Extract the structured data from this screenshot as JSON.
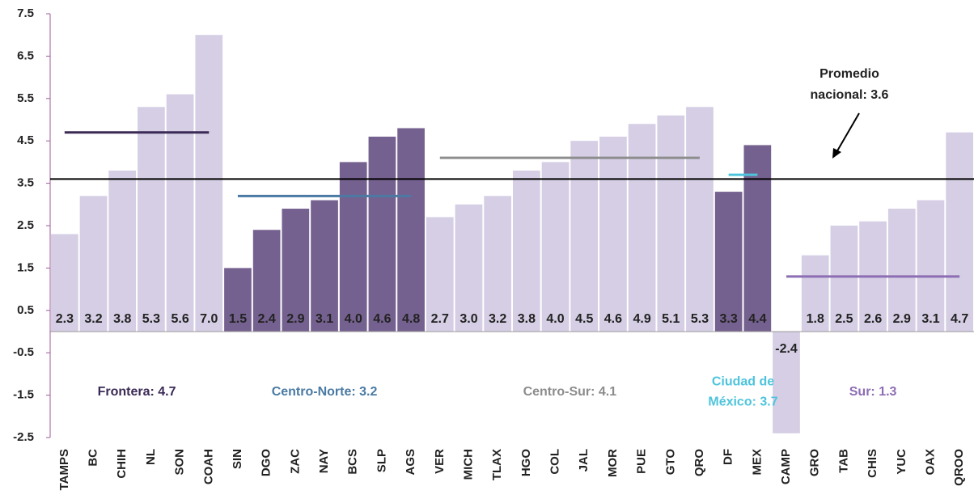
{
  "chart_data": {
    "type": "bar",
    "categories": [
      "TAMPS",
      "BC",
      "CHIH",
      "NL",
      "SON",
      "COAH",
      "SIN",
      "DGO",
      "ZAC",
      "NAY",
      "BCS",
      "SLP",
      "AGS",
      "VER",
      "MICH",
      "TLAX",
      "HGO",
      "COL",
      "JAL",
      "MOR",
      "PUE",
      "GTO",
      "QRO",
      "DF",
      "MEX",
      "CAMP",
      "GRO",
      "TAB",
      "CHIS",
      "YUC",
      "OAX",
      "QROO"
    ],
    "values": [
      2.3,
      3.2,
      3.8,
      5.3,
      5.6,
      7.0,
      1.5,
      2.4,
      2.9,
      3.1,
      4.0,
      4.6,
      4.8,
      2.7,
      3.0,
      3.2,
      3.8,
      4.0,
      4.5,
      4.6,
      4.9,
      5.1,
      5.3,
      3.3,
      4.4,
      -2.4,
      1.8,
      2.5,
      2.6,
      2.9,
      3.1,
      4.7
    ],
    "value_labels": [
      "2.3",
      "3.2",
      "3.8",
      "5.3",
      "5.6",
      "7.0",
      "1.5",
      "2.4",
      "2.9",
      "3.1",
      "4.0",
      "4.6",
      "4.8",
      "2.7",
      "3.0",
      "3.2",
      "3.8",
      "4.0",
      "4.5",
      "4.6",
      "4.9",
      "5.1",
      "5.3",
      "3.3",
      "4.4",
      "-2.4",
      "1.8",
      "2.5",
      "2.6",
      "2.9",
      "3.1",
      "4.7"
    ],
    "colors": [
      "#d5cee4",
      "#d5cee4",
      "#d5cee4",
      "#d5cee4",
      "#d5cee4",
      "#d5cee4",
      "#75618f",
      "#75618f",
      "#75618f",
      "#75618f",
      "#75618f",
      "#75618f",
      "#75618f",
      "#d5cee4",
      "#d5cee4",
      "#d5cee4",
      "#d5cee4",
      "#d5cee4",
      "#d5cee4",
      "#d5cee4",
      "#d5cee4",
      "#d5cee4",
      "#d5cee4",
      "#75618f",
      "#75618f",
      "#d5cee4",
      "#d5cee4",
      "#d5cee4",
      "#d5cee4",
      "#d5cee4",
      "#d5cee4",
      "#d5cee4"
    ],
    "ylim": [
      -2.5,
      7.5
    ],
    "yticks": [
      -2.5,
      -1.5,
      -0.5,
      0.5,
      1.5,
      2.5,
      3.5,
      4.5,
      5.5,
      6.5,
      7.5
    ],
    "grid": false,
    "reference_line": {
      "value": 3.6,
      "label": [
        "Promedio",
        "nacional: 3.6"
      ],
      "color": "#000000"
    },
    "regions": [
      {
        "label": [
          "Frontera: 4.7"
        ],
        "value": 4.7,
        "from": "TAMPS",
        "to": "COAH",
        "color": "#3b2a55"
      },
      {
        "label": [
          "Centro-Norte: 3.2"
        ],
        "value": 3.2,
        "from": "SIN",
        "to": "AGS",
        "color": "#4a7aa3"
      },
      {
        "label": [
          "Centro-Sur: 4.1"
        ],
        "value": 4.1,
        "from": "VER",
        "to": "QRO",
        "color": "#8c8c8c"
      },
      {
        "label": [
          "Ciudad de",
          "México: 3.7"
        ],
        "value": 3.7,
        "from": "DF",
        "to": "MEX",
        "color": "#4ec4dc"
      },
      {
        "label": [
          "Sur: 1.3"
        ],
        "value": 1.3,
        "from": "CAMP",
        "to": "QROO",
        "color": "#8d6db3"
      }
    ]
  }
}
